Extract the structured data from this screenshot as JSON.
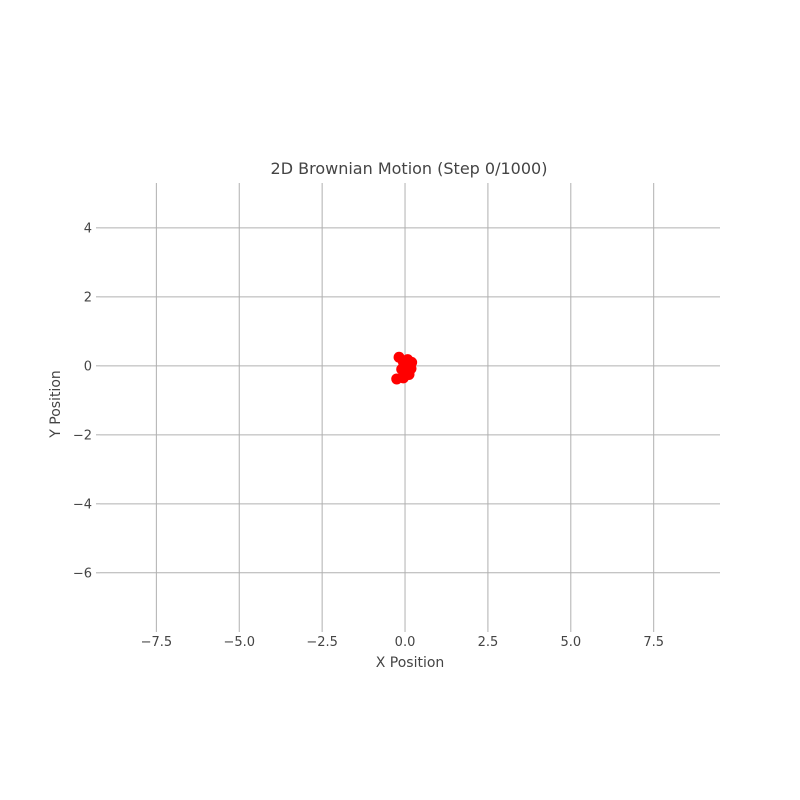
{
  "chart_data": {
    "type": "scatter",
    "title": "2D Brownian Motion (Step 0/1000)",
    "xlabel": "X Position",
    "ylabel": "Y Position",
    "xlim": [
      -9.2,
      9.5
    ],
    "ylim": [
      -7.6,
      5.3
    ],
    "xticks": [
      -7.5,
      -5.0,
      -2.5,
      0.0,
      2.5,
      5.0,
      7.5
    ],
    "xtick_labels": [
      "−7.5",
      "−5.0",
      "−2.5",
      "0.0",
      "2.5",
      "5.0",
      "7.5"
    ],
    "yticks": [
      4,
      2,
      0,
      -2,
      -4,
      -6
    ],
    "ytick_labels": [
      "4",
      "2",
      "0",
      "−2",
      "−4",
      "−6"
    ],
    "grid": true,
    "point_color": "#ff0000",
    "points": [
      {
        "x": -0.18,
        "y": 0.25
      },
      {
        "x": -0.05,
        "y": 0.12
      },
      {
        "x": 0.08,
        "y": 0.18
      },
      {
        "x": 0.15,
        "y": 0.05
      },
      {
        "x": 0.02,
        "y": -0.02
      },
      {
        "x": 0.18,
        "y": -0.08
      },
      {
        "x": 0.05,
        "y": -0.18
      },
      {
        "x": 0.12,
        "y": -0.25
      },
      {
        "x": -0.05,
        "y": -0.35
      },
      {
        "x": -0.25,
        "y": -0.38
      },
      {
        "x": 0.2,
        "y": 0.1
      },
      {
        "x": -0.1,
        "y": -0.1
      }
    ]
  }
}
